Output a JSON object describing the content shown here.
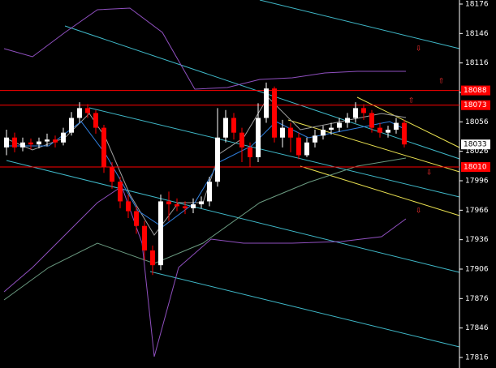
{
  "chart_data": {
    "type": "candlestick",
    "open": [
      18030,
      18040,
      18030,
      18035,
      18033,
      18036,
      18038,
      18035,
      18045,
      18060,
      18070,
      18065,
      18050,
      18010,
      17995,
      17975,
      17965,
      17950,
      17925,
      17910,
      17975,
      17972,
      17970,
      17968,
      17972,
      17975,
      17995,
      18040,
      18060,
      18045,
      18030,
      18020,
      18060,
      18090,
      18040,
      18050,
      18040,
      18022,
      18035,
      18042,
      18048,
      18050,
      18055,
      18060,
      18070,
      18065,
      18050,
      18045,
      18048,
      18055
    ],
    "high": [
      18048,
      18045,
      18040,
      18039,
      18040,
      18044,
      18042,
      18050,
      18066,
      18076,
      18074,
      18068,
      18053,
      18015,
      18000,
      17982,
      17970,
      17955,
      17930,
      17982,
      17985,
      17978,
      17975,
      17978,
      17980,
      18000,
      18070,
      18068,
      18065,
      18050,
      18035,
      18075,
      18096,
      18092,
      18058,
      18055,
      18045,
      18040,
      18048,
      18052,
      18055,
      18060,
      18065,
      18076,
      18074,
      18068,
      18055,
      18052,
      18060,
      18058
    ],
    "low": [
      18022,
      18025,
      18026,
      18028,
      18029,
      18031,
      18030,
      18032,
      18042,
      18055,
      18060,
      18044,
      18004,
      17988,
      17968,
      17958,
      17942,
      17915,
      17900,
      17905,
      17955,
      17965,
      17962,
      17963,
      17968,
      17970,
      17990,
      18035,
      18038,
      18015,
      18010,
      18015,
      18055,
      18035,
      18030,
      18025,
      18018,
      18020,
      18030,
      18038,
      18043,
      18046,
      18050,
      18055,
      18058,
      18045,
      18040,
      18040,
      18044,
      18030
    ],
    "close": [
      18040,
      18030,
      18035,
      18033,
      18036,
      18038,
      18035,
      18045,
      18060,
      18070,
      18065,
      18050,
      18010,
      17995,
      17975,
      17965,
      17950,
      17925,
      17910,
      17975,
      17972,
      17970,
      17968,
      17972,
      17975,
      17995,
      18040,
      18060,
      18045,
      18030,
      18020,
      18060,
      18090,
      18040,
      18050,
      18040,
      18022,
      18035,
      18042,
      18048,
      18050,
      18055,
      18060,
      18070,
      18065,
      18050,
      18045,
      18048,
      18055,
      18033
    ],
    "up_color": "#ffffff",
    "down_color": "#ff0000",
    "ylim": [
      17816,
      18176
    ],
    "yticks": [
      18176,
      18146,
      18116,
      18086,
      18056,
      18026,
      17996,
      17966,
      17936,
      17906,
      17876,
      17846,
      17816
    ],
    "price_levels": [
      18088,
      18073,
      18010
    ],
    "level_color": "#ff0000",
    "last_price": 18033
  }
}
